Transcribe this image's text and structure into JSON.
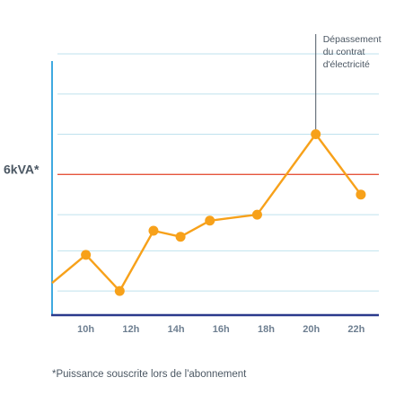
{
  "chart_data": {
    "type": "line",
    "ylabel": "6kVA*",
    "threshold": 6,
    "ylim": [
      2.5,
      9
    ],
    "xlim": [
      8.5,
      23
    ],
    "x_ticks": [
      10,
      12,
      14,
      16,
      18,
      20,
      22
    ],
    "x_tick_labels": [
      "10h",
      "12h",
      "14h",
      "16h",
      "18h",
      "20h",
      "22h"
    ],
    "y_grid": [
      3.1,
      4.1,
      5.0,
      7.0,
      8.0,
      9.0
    ],
    "grid": true,
    "x": [
      8.5,
      10.0,
      11.5,
      13.0,
      14.2,
      15.5,
      17.6,
      20.2,
      22.2
    ],
    "values": [
      3.3,
      4.0,
      3.1,
      4.6,
      4.45,
      4.85,
      5.0,
      7.0,
      5.5
    ],
    "marker_visible": [
      false,
      true,
      true,
      true,
      true,
      true,
      true,
      true,
      true
    ],
    "annotation": {
      "lines": [
        "Dépassement",
        "du contrat",
        "d'électricité"
      ],
      "point_index": 7
    },
    "footnote": "*Puissance souscrite lors de l'abonnement",
    "colors": {
      "line": "#f7a11a",
      "threshold": "#e5553d",
      "grid": "#bfe2ee",
      "y_axis": "#3fa9e0",
      "x_axis": "#2b3a8c"
    }
  }
}
